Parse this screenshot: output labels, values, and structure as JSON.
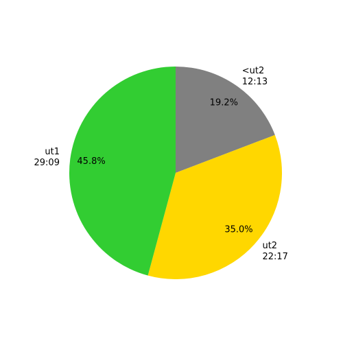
{
  "chart_data": {
    "type": "pie",
    "categories": [
      "<ut2",
      "ut2",
      "ut1"
    ],
    "durations": [
      "12:13",
      "22:17",
      "29:09"
    ],
    "values": [
      19.2,
      35.0,
      45.8
    ],
    "value_labels": [
      "19.2%",
      "35.0%",
      "45.8%"
    ],
    "colors": [
      "#808080",
      "#ffd700",
      "#32cd32"
    ]
  }
}
